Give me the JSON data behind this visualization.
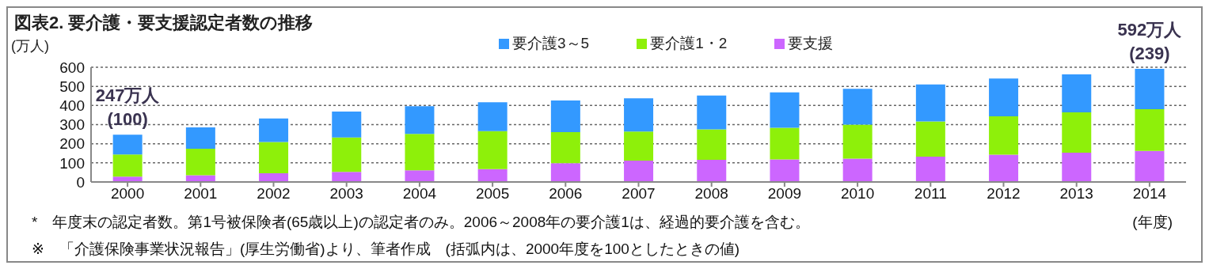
{
  "chart_data": {
    "type": "bar",
    "stacked": true,
    "title": "図表2.  要介護・要支援認定者数の推移",
    "ylabel": "(万人)",
    "xlabel": "(年度)",
    "categories": [
      "2000",
      "2001",
      "2002",
      "2003",
      "2004",
      "2005",
      "2006",
      "2007",
      "2008",
      "2009",
      "2010",
      "2011",
      "2012",
      "2013",
      "2014"
    ],
    "series": [
      {
        "name": "要支援",
        "color": "#cc66ff",
        "values": [
          28,
          35,
          46,
          53,
          61,
          67,
          98,
          112,
          116,
          118,
          122,
          132,
          143,
          153,
          162
        ]
      },
      {
        "name": "要介護1・2",
        "color": "#8ef00a",
        "values": [
          116,
          139,
          163,
          180,
          190,
          199,
          163,
          152,
          159,
          165,
          178,
          185,
          200,
          211,
          219
        ]
      },
      {
        "name": "要介護3～5",
        "color": "#3399ff",
        "values": [
          103,
          112,
          123,
          135,
          145,
          151,
          165,
          174,
          177,
          186,
          187,
          193,
          198,
          199,
          211
        ]
      }
    ],
    "ylim": [
      0,
      600
    ],
    "yticks": [
      0,
      100,
      200,
      300,
      400,
      500,
      600
    ],
    "grid": "y",
    "legend": "top",
    "annotations": [
      {
        "text": "247万人",
        "x": "2000",
        "y": 247
      },
      {
        "text": "(100)",
        "x": "2000",
        "y": 247
      },
      {
        "text": "592万人",
        "x": "2014",
        "y": 592
      },
      {
        "text": "(239)",
        "x": "2014",
        "y": 592
      },
      "*　年度末の認定者数。第1号被保険者(65歳以上)の認定者のみ。2006～2008年の要介護1は、経過的要介護を含む。",
      "※　「介護保険事業状況報告」(厚生労働省)より、筆者作成　(括弧内は、2000年度を100としたときの値)"
    ]
  }
}
